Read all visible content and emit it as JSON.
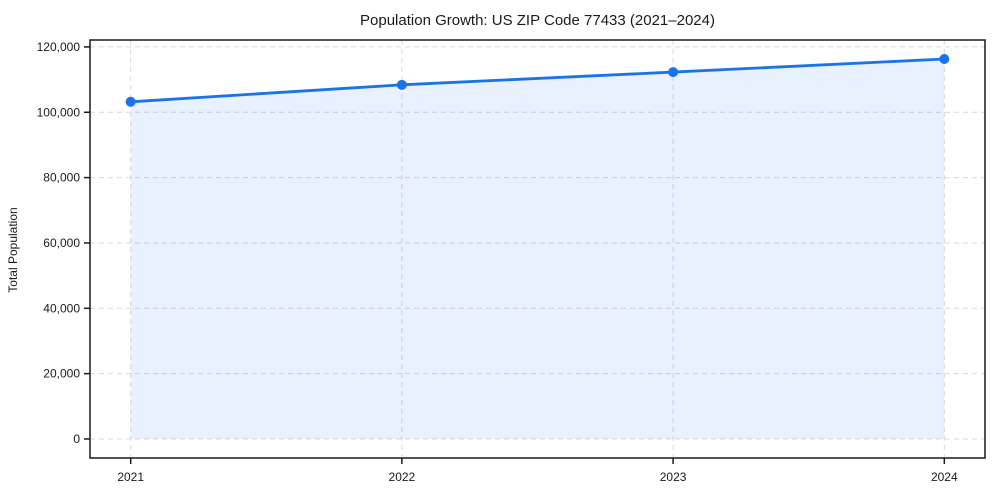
{
  "chart_data": {
    "type": "area",
    "title": "Population Growth: US ZIP Code 77433 (2021–2024)",
    "xlabel": "",
    "ylabel": "Total Population",
    "x": [
      2021,
      2022,
      2023,
      2024
    ],
    "x_tick_labels": [
      "2021",
      "2022",
      "2023",
      "2024"
    ],
    "series": [
      {
        "name": "Total Population",
        "values": [
          103200,
          108400,
          112300,
          116300
        ]
      }
    ],
    "y_ticks": [
      0,
      20000,
      40000,
      60000,
      80000,
      100000,
      120000
    ],
    "y_tick_labels": [
      "0",
      "20,000",
      "40,000",
      "60,000",
      "80,000",
      "100,000",
      "120,000"
    ],
    "ylim": [
      0,
      120000
    ],
    "grid": "dashed-both-axes",
    "legend": "none",
    "colors": {
      "line": "#1a73e8",
      "marker": "#1a73e8",
      "fill": "#1a73e8",
      "fill_opacity": "0.10",
      "grid": "#d9d9d9",
      "spine": "#1a1a1a",
      "text": "#1a1a1a"
    }
  }
}
